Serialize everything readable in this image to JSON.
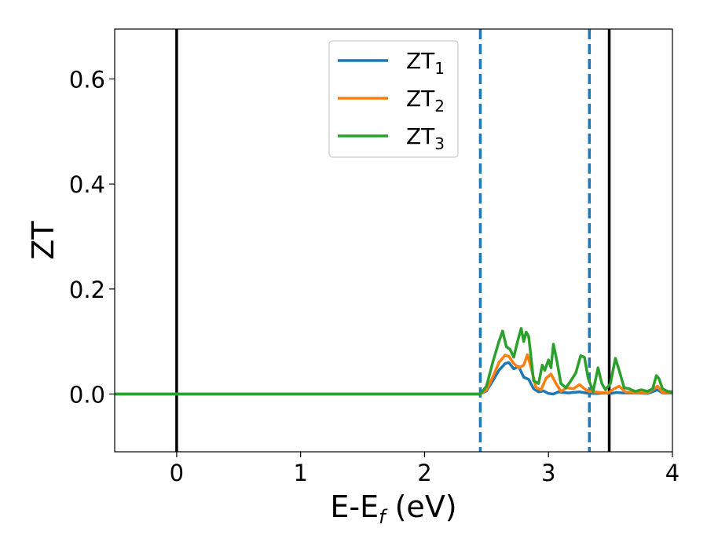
{
  "chart_data": {
    "type": "line",
    "xlabel": {
      "main": "E-E",
      "sub": "f",
      "suffix": " (eV)"
    },
    "ylabel": "ZT",
    "xlim": [
      -0.5,
      4.0
    ],
    "ylim": [
      -0.11,
      0.695
    ],
    "xticks": [
      0,
      1,
      2,
      3,
      4
    ],
    "xtick_labels": [
      "0",
      "1",
      "2",
      "3",
      "4"
    ],
    "yticks": [
      0.0,
      0.2,
      0.4,
      0.6
    ],
    "ytick_labels": [
      "0.0",
      "0.2",
      "0.4",
      "0.6"
    ],
    "grid": false,
    "legend_position": "top-center",
    "vlines": [
      {
        "x": 0.0,
        "style": "solid",
        "color": "#000000"
      },
      {
        "x": 3.49,
        "style": "solid",
        "color": "#000000"
      },
      {
        "x": 2.45,
        "style": "dashed",
        "color": "#1f77b4"
      },
      {
        "x": 3.33,
        "style": "dashed",
        "color": "#1f77b4"
      }
    ],
    "series": [
      {
        "name": "ZT",
        "sub": "1",
        "color": "#1f77b4",
        "x": [
          -0.5,
          2.45,
          2.5,
          2.55,
          2.6,
          2.65,
          2.68,
          2.72,
          2.76,
          2.8,
          2.84,
          2.88,
          2.92,
          2.96,
          3.0,
          3.04,
          3.08,
          3.12,
          3.16,
          3.2,
          3.25,
          3.3,
          3.35,
          3.4,
          3.45,
          3.5,
          3.55,
          3.6,
          3.7,
          3.8,
          3.88,
          3.92,
          4.0
        ],
        "y": [
          0.0,
          0.0,
          0.006,
          0.025,
          0.045,
          0.058,
          0.06,
          0.048,
          0.052,
          0.032,
          0.028,
          0.01,
          0.004,
          0.006,
          0.001,
          0.0,
          0.004,
          0.003,
          0.002,
          0.003,
          0.004,
          0.002,
          0.001,
          0.001,
          0.002,
          0.001,
          0.003,
          0.002,
          0.002,
          0.001,
          0.008,
          0.002,
          0.002
        ]
      },
      {
        "name": "ZT",
        "sub": "2",
        "color": "#ff7f0e",
        "x": [
          -0.5,
          2.45,
          2.5,
          2.55,
          2.6,
          2.65,
          2.68,
          2.72,
          2.76,
          2.8,
          2.83,
          2.86,
          2.9,
          2.94,
          2.98,
          3.02,
          3.06,
          3.1,
          3.15,
          3.2,
          3.25,
          3.3,
          3.33,
          3.37,
          3.42,
          3.48,
          3.53,
          3.57,
          3.62,
          3.7,
          3.8,
          3.88,
          3.92,
          4.0
        ],
        "y": [
          0.0,
          0.0,
          0.008,
          0.032,
          0.06,
          0.074,
          0.072,
          0.058,
          0.05,
          0.055,
          0.075,
          0.05,
          0.012,
          0.008,
          0.03,
          0.038,
          0.02,
          0.005,
          0.012,
          0.01,
          0.018,
          0.008,
          0.005,
          0.004,
          0.003,
          0.002,
          0.01,
          0.015,
          0.004,
          0.003,
          0.002,
          0.015,
          0.003,
          0.004
        ]
      },
      {
        "name": "ZT",
        "sub": "3",
        "color": "#2ca02c",
        "x": [
          -0.5,
          2.45,
          2.5,
          2.55,
          2.6,
          2.63,
          2.66,
          2.69,
          2.72,
          2.75,
          2.78,
          2.8,
          2.82,
          2.84,
          2.88,
          2.92,
          2.95,
          2.97,
          3.0,
          3.02,
          3.04,
          3.07,
          3.1,
          3.14,
          3.18,
          3.22,
          3.26,
          3.29,
          3.32,
          3.36,
          3.4,
          3.43,
          3.46,
          3.5,
          3.54,
          3.57,
          3.61,
          3.65,
          3.7,
          3.75,
          3.8,
          3.84,
          3.87,
          3.89,
          3.92,
          3.96,
          4.0
        ],
        "y": [
          0.0,
          0.0,
          0.015,
          0.06,
          0.1,
          0.12,
          0.09,
          0.085,
          0.07,
          0.1,
          0.125,
          0.1,
          0.118,
          0.11,
          0.025,
          0.02,
          0.055,
          0.045,
          0.065,
          0.05,
          0.095,
          0.06,
          0.02,
          0.012,
          0.025,
          0.04,
          0.073,
          0.07,
          0.03,
          0.005,
          0.05,
          0.02,
          0.008,
          0.02,
          0.068,
          0.045,
          0.012,
          0.01,
          0.005,
          0.008,
          0.005,
          0.01,
          0.035,
          0.03,
          0.01,
          0.005,
          0.004
        ]
      }
    ]
  }
}
